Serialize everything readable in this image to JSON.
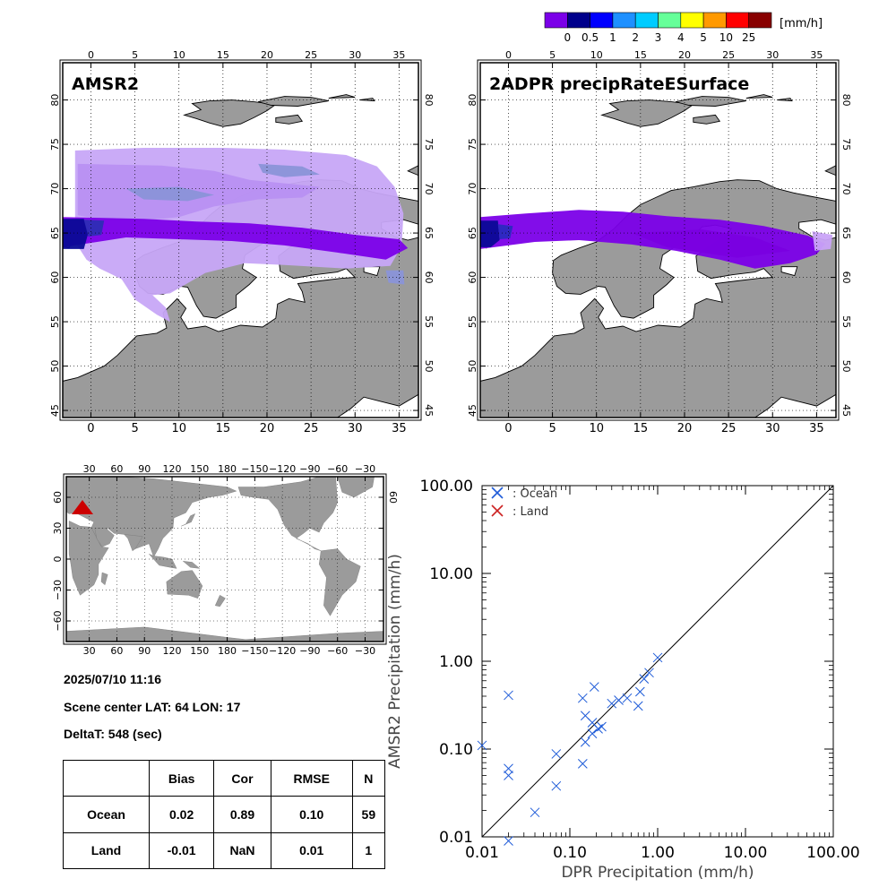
{
  "colorbar": {
    "unit": "[mm/h]",
    "tick_labels": [
      "0",
      "0.5",
      "1",
      "2",
      "3",
      "4",
      "5",
      "10",
      "25"
    ],
    "colors": [
      "#7B00E8",
      "#00008B",
      "#0000FF",
      "#1E90FF",
      "#00CCFF",
      "#66FF99",
      "#FFFF00",
      "#FF9900",
      "#FF0000",
      "#880000"
    ]
  },
  "map_colors": {
    "land": "#9B9B9B",
    "ocean": "#FFFFFF",
    "precip_light": "#B890F2",
    "precip_lighter": "#C7A6F7",
    "precip_mid": "#7B00E8",
    "precip_dark": "#0A0A96",
    "precip_gray_blue": "#8A94D8",
    "marker": "#CC0000"
  },
  "panels": {
    "left_title": "AMSR2",
    "right_title": "2ADPR precipRateESurface",
    "lon_ticks": [
      "0",
      "5",
      "10",
      "15",
      "20",
      "25",
      "30",
      "35"
    ],
    "lat_ticks": [
      "45",
      "50",
      "55",
      "60",
      "65",
      "70",
      "75",
      "80"
    ]
  },
  "world_map": {
    "lon_ticks_top": [
      "30",
      "60",
      "90",
      "120",
      "150",
      "180",
      "−150",
      "−120",
      "−90",
      "−60",
      "−30"
    ],
    "lon_ticks_bottom": [
      "30",
      "60",
      "90",
      "120",
      "150",
      "180",
      "−150",
      "−120",
      "−90",
      "−60",
      "−30"
    ],
    "lat_ticks": [
      "60",
      "30",
      "0",
      "−30",
      "−60"
    ]
  },
  "info": {
    "datetime": "2025/07/10 11:16",
    "scene_center": "Scene center LAT: 64   LON:  17",
    "delta_t": "DeltaT:  548 (sec)"
  },
  "stats_table": {
    "headers": [
      "",
      "Bias",
      "Cor",
      "RMSE",
      "N"
    ],
    "rows": [
      [
        "Ocean",
        "0.02",
        "0.89",
        "0.10",
        "59"
      ],
      [
        "Land",
        "-0.01",
        "NaN",
        "0.01",
        "1"
      ]
    ]
  },
  "chart_data": {
    "type": "scatter",
    "xlabel": "DPR Precipitation (mm/h)",
    "ylabel": "AMSR2 Precipitation (mm/h)",
    "xscale": "log",
    "yscale": "log",
    "xlim": [
      0.01,
      100
    ],
    "ylim": [
      0.01,
      100
    ],
    "x_tick_labels": [
      "0.01",
      "0.10",
      "1.00",
      "10.00",
      "100.00"
    ],
    "y_tick_labels": [
      "0.01",
      "0.10",
      "1.00",
      "10.00",
      "100.00"
    ],
    "legend_placement": "top-left",
    "reference_line": "1:1",
    "series": [
      {
        "name": ": Ocean",
        "color": "#1E5BD8",
        "marker": "x",
        "points": [
          [
            0.01,
            0.11
          ],
          [
            0.02,
            0.41
          ],
          [
            0.02,
            0.06
          ],
          [
            0.02,
            0.05
          ],
          [
            0.02,
            0.009
          ],
          [
            0.04,
            0.019
          ],
          [
            0.07,
            0.088
          ],
          [
            0.07,
            0.038
          ],
          [
            0.14,
            0.068
          ],
          [
            0.14,
            0.38
          ],
          [
            0.15,
            0.24
          ],
          [
            0.15,
            0.12
          ],
          [
            0.18,
            0.2
          ],
          [
            0.18,
            0.15
          ],
          [
            0.19,
            0.51
          ],
          [
            0.21,
            0.17
          ],
          [
            0.23,
            0.18
          ],
          [
            0.3,
            0.33
          ],
          [
            0.36,
            0.36
          ],
          [
            0.45,
            0.38
          ],
          [
            0.6,
            0.31
          ],
          [
            0.63,
            0.45
          ],
          [
            0.7,
            0.63
          ],
          [
            0.8,
            0.74
          ],
          [
            1.0,
            1.1
          ]
        ]
      },
      {
        "name": ": Land",
        "color": "#CC2222",
        "marker": "x",
        "points": []
      }
    ]
  }
}
